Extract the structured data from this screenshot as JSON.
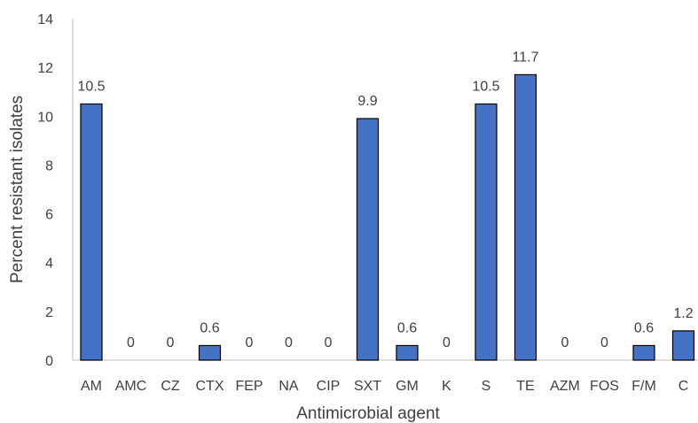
{
  "chart_data": {
    "type": "bar",
    "title": "",
    "xlabel": "Antimicrobial agent",
    "ylabel": "Percent resistant isolates",
    "ylim": [
      0,
      14
    ],
    "yticks": [
      0,
      2,
      4,
      6,
      8,
      10,
      12,
      14
    ],
    "grid": false,
    "legend": "none",
    "bar_color": "#4472C4",
    "categories": [
      "AM",
      "AMC",
      "CZ",
      "CTX",
      "FEP",
      "NA",
      "CIP",
      "SXT",
      "GM",
      "K",
      "S",
      "TE",
      "AZM",
      "FOS",
      "F/M",
      "C"
    ],
    "values": [
      10.5,
      0,
      0,
      0.6,
      0,
      0,
      0,
      9.9,
      0.6,
      0,
      10.5,
      11.7,
      0,
      0,
      0.6,
      1.2
    ],
    "data_labels": [
      "10.5",
      "0",
      "0",
      "0.6",
      "0",
      "0",
      "0",
      "9.9",
      "0.6",
      "0",
      "10.5",
      "11.7",
      "0",
      "0",
      "0.6",
      "1.2"
    ]
  }
}
